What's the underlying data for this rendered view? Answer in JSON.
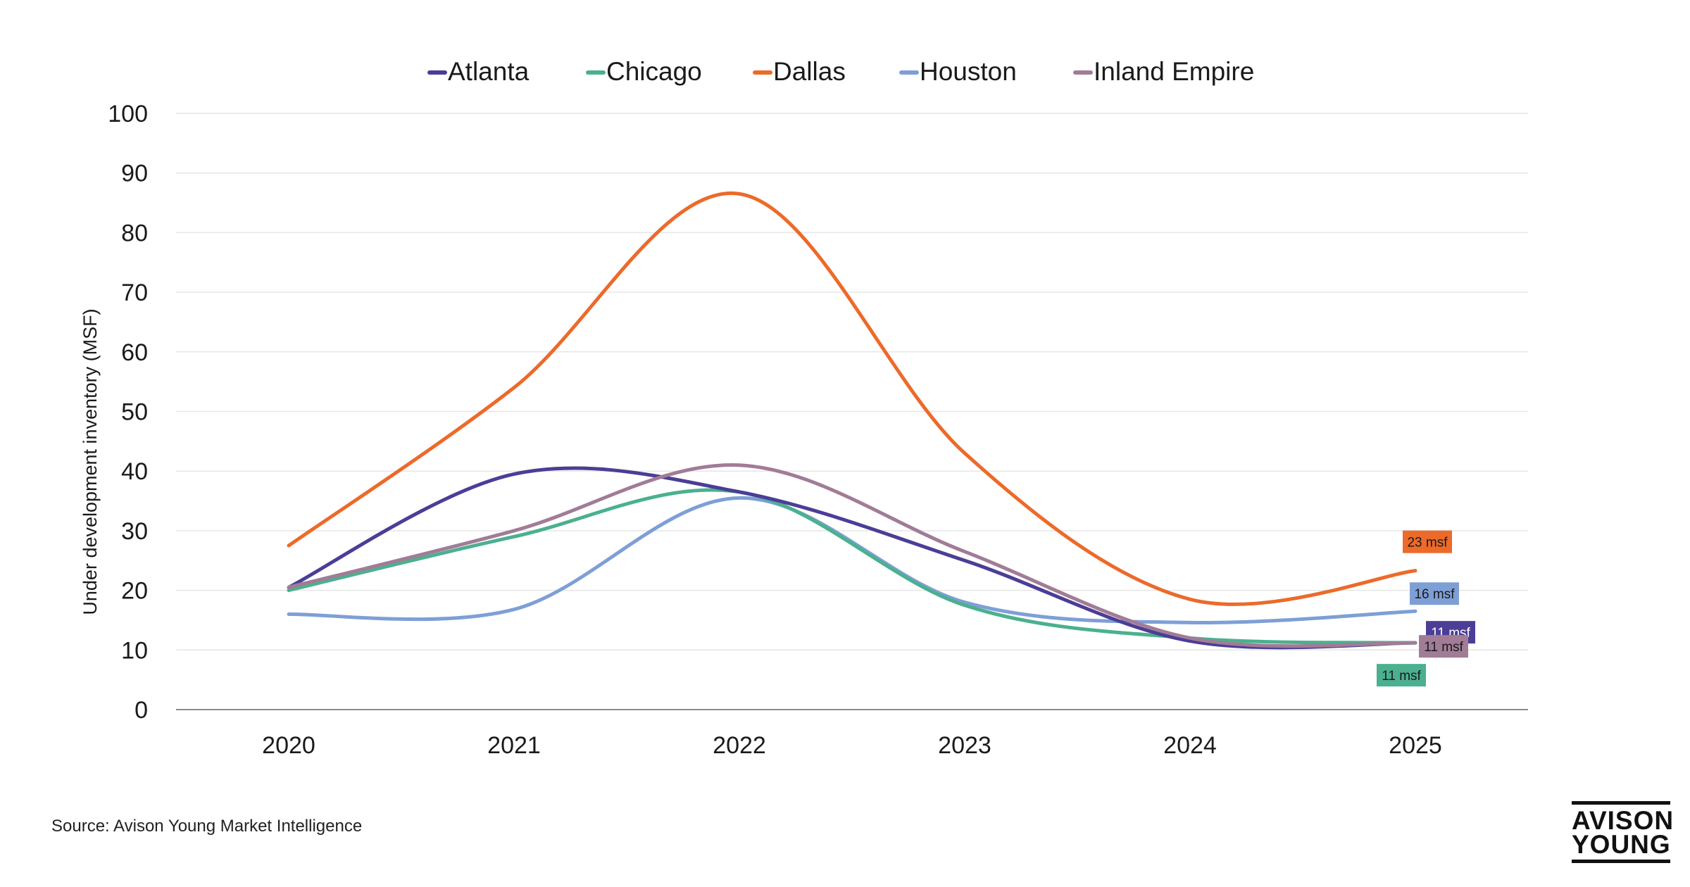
{
  "chart_data": {
    "type": "line",
    "title": "",
    "xlabel": "",
    "ylabel": "Under development inventory (MSF)",
    "ylim": [
      0,
      100
    ],
    "yticks": [
      "0",
      "10",
      "20",
      "30",
      "40",
      "50",
      "60",
      "70",
      "80",
      "90",
      "100"
    ],
    "categories": [
      "2020",
      "2021",
      "2022",
      "2023",
      "2024",
      "2025"
    ],
    "legend_position": "top-center",
    "series": [
      {
        "name": "Atlanta",
        "color": "#4b3e96",
        "values": [
          20.5,
          39.5,
          36.5,
          25,
          11.5,
          11.2
        ],
        "end_label": "11 msf",
        "label_text_color": "#ffffff"
      },
      {
        "name": "Chicago",
        "color": "#4bb08f",
        "values": [
          20,
          29,
          36.5,
          17.5,
          12,
          11.2
        ],
        "end_label": "11 msf",
        "label_text_color": "#1a1a1a"
      },
      {
        "name": "Dallas",
        "color": "#ec6a2a",
        "values": [
          27.5,
          54,
          86.5,
          43,
          18.5,
          23.3
        ],
        "end_label": "23 msf",
        "label_text_color": "#1a1a1a"
      },
      {
        "name": "Houston",
        "color": "#7e9fd6",
        "values": [
          16,
          16.8,
          35.5,
          18,
          14.6,
          16.5
        ],
        "end_label": "16 msf",
        "label_text_color": "#1a1a1a"
      },
      {
        "name": "Inland Empire",
        "color": "#a17c96",
        "values": [
          20.5,
          30,
          41,
          26.5,
          12,
          11.2
        ],
        "end_label": "11 msf",
        "label_text_color": "#1a1a1a"
      }
    ]
  },
  "footer": {
    "source": "Source: Avison Young Market Intelligence",
    "logo_line1": "AVISON",
    "logo_line2": "YOUNG"
  }
}
